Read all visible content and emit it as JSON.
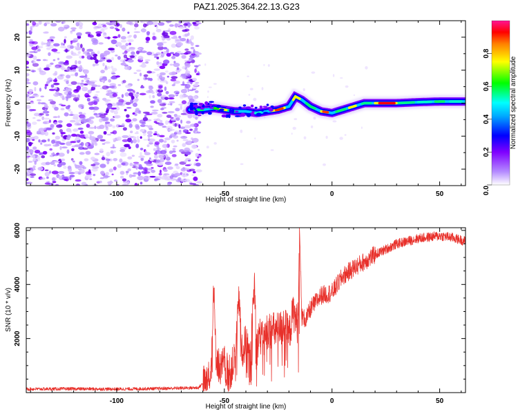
{
  "title": "PAZ1.2025.364.22.13.G23",
  "chart_data": [
    {
      "type": "heatmap",
      "name": "spectrogram",
      "xlabel": "Height of straight line (km)",
      "ylabel": "Frequency (Hz)",
      "xlim": [
        -142,
        62
      ],
      "ylim": [
        -25,
        25
      ],
      "xticks": [
        -100,
        -50,
        0,
        50
      ],
      "xtick_labels": [
        "-100",
        "-50",
        "0",
        "50"
      ],
      "yticks": [
        -20,
        -10,
        0,
        10,
        20
      ],
      "ytick_labels": [
        "-20",
        "-10",
        "0",
        "10",
        "20"
      ],
      "noise_region_km": [
        -142,
        -64
      ],
      "signal_track": {
        "x": [
          -66,
          -60,
          -55,
          -50,
          -45,
          -40,
          -35,
          -30,
          -25,
          -20,
          -17,
          -14,
          -10,
          -5,
          0,
          5,
          10,
          15,
          20,
          30,
          40,
          50,
          62
        ],
        "y": [
          -2,
          -2,
          -1.5,
          -2,
          -2.5,
          -2.5,
          -3,
          -2.5,
          -2,
          -1,
          2,
          1,
          -1,
          -2.5,
          -3,
          -2,
          -1,
          0,
          0,
          0,
          0.3,
          0.5,
          0.5
        ]
      },
      "colorbar": {
        "label": "Normalized spectral amplitude",
        "range": [
          0,
          1
        ],
        "ticks": [
          0,
          0.2,
          0.4,
          0.6,
          0.8
        ],
        "tick_labels": [
          "0.0",
          "0.2",
          "0.4",
          "0.6",
          "0.8"
        ],
        "colors": [
          "#ffffff",
          "#7f00ff",
          "#0000ff",
          "#00ffff",
          "#00ff00",
          "#ffff00",
          "#ff0000",
          "#ff1493"
        ]
      }
    },
    {
      "type": "line",
      "name": "snr",
      "xlabel": "Height of straight line (km)",
      "ylabel": "SNR (10 * v/v)",
      "xlim": [
        -142,
        62
      ],
      "ylim": [
        0,
        6100
      ],
      "xticks": [
        -100,
        -50,
        0,
        50
      ],
      "xtick_labels": [
        "-100",
        "-50",
        "0",
        "50"
      ],
      "yticks": [
        2000,
        4000,
        6000
      ],
      "ytick_labels": [
        "2000",
        "4000",
        "6000"
      ],
      "color": "#e8302a",
      "series": [
        {
          "name": "SNR",
          "x": [
            -142,
            -120,
            -100,
            -80,
            -62,
            -58,
            -56,
            -55,
            -54,
            -52,
            -50,
            -48,
            -45,
            -43,
            -42,
            -40,
            -38,
            -36,
            -35,
            -34,
            -32,
            -30,
            -25,
            -22,
            -20,
            -18,
            -16,
            -15,
            -14,
            -12,
            -10,
            -5,
            0,
            5,
            10,
            20,
            30,
            40,
            50,
            55,
            62
          ],
          "y": [
            130,
            140,
            130,
            150,
            180,
            500,
            1200,
            4000,
            1500,
            800,
            1100,
            600,
            1300,
            3600,
            1400,
            1900,
            1000,
            4100,
            1500,
            2200,
            1900,
            2300,
            2300,
            2500,
            2100,
            3000,
            2500,
            5800,
            2800,
            2700,
            3100,
            3600,
            3700,
            4300,
            4600,
            5100,
            5500,
            5700,
            5800,
            5750,
            5600
          ]
        }
      ]
    }
  ]
}
